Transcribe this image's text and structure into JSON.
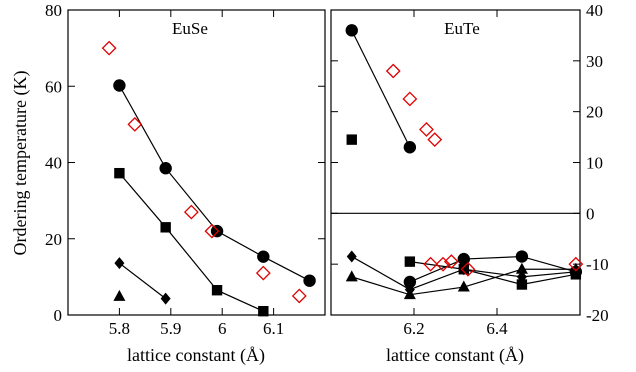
{
  "chart_data": [
    {
      "type": "scatter",
      "title": "EuSe",
      "xlabel": "lattice constant (Å)",
      "ylabel": "Ordering temperature (K)",
      "xlim": [
        5.7,
        6.2
      ],
      "ylim": [
        0,
        80
      ],
      "xticks": [
        5.8,
        5.9,
        6,
        6.1
      ],
      "xtick_labels": [
        "5.8",
        "5.9",
        "6",
        "6.1"
      ],
      "yticks": [
        0,
        20,
        40,
        60,
        80
      ],
      "ytick_labels": [
        "0",
        "20",
        "40",
        "60",
        "80"
      ],
      "grid": false,
      "series": [
        {
          "marker": "circle",
          "connected": true,
          "color": "#000000",
          "x": [
            5.8,
            5.89,
            5.99,
            6.08,
            6.17
          ],
          "y": [
            60.2,
            38.5,
            22,
            15.3,
            9
          ]
        },
        {
          "marker": "square",
          "connected": true,
          "color": "#000000",
          "x": [
            5.8,
            5.89,
            5.99,
            6.08
          ],
          "y": [
            37.2,
            23,
            6.5,
            1
          ]
        },
        {
          "marker": "diamond",
          "connected": true,
          "color": "#000000",
          "x": [
            5.8,
            5.89
          ],
          "y": [
            13.6,
            4.3
          ]
        },
        {
          "marker": "triangle",
          "connected": false,
          "color": "#000000",
          "x": [
            5.8
          ],
          "y": [
            4.9
          ]
        },
        {
          "marker": "open-diamond",
          "connected": false,
          "color": "#e00000",
          "x": [
            5.78,
            5.83,
            5.94,
            5.98,
            6.08,
            6.15
          ],
          "y": [
            70,
            50,
            27,
            22,
            11,
            5
          ]
        }
      ]
    },
    {
      "type": "scatter",
      "title": "EuTe",
      "xlabel": "lattice constant (Å)",
      "ylabel": "",
      "xlim": [
        6.0,
        6.6
      ],
      "ylim": [
        -20,
        40
      ],
      "xticks": [
        6.2,
        6.4
      ],
      "xtick_labels": [
        "6.2",
        "6.4"
      ],
      "yticks": [
        -20,
        -10,
        0,
        10,
        20,
        30,
        40
      ],
      "ytick_labels": [
        "-20",
        "-10",
        "0",
        "10",
        "20",
        "30",
        "40"
      ],
      "zero_line": true,
      "grid": false,
      "series": [
        {
          "marker": "circle",
          "connected": true,
          "color": "#000000",
          "x": [
            6.05,
            6.19
          ],
          "y": [
            36,
            13
          ]
        },
        {
          "marker": "square",
          "connected": false,
          "color": "#000000",
          "x": [
            6.05
          ],
          "y": [
            14.5
          ]
        },
        {
          "marker": "circle",
          "connected": true,
          "color": "#000000",
          "x": [
            6.19,
            6.32,
            6.46,
            6.59
          ],
          "y": [
            -13.5,
            -9,
            -8.5,
            -11.5
          ]
        },
        {
          "marker": "square",
          "connected": true,
          "color": "#000000",
          "x": [
            6.19,
            6.32,
            6.46,
            6.59
          ],
          "y": [
            -9.5,
            -11,
            -14,
            -12
          ]
        },
        {
          "marker": "diamond",
          "connected": true,
          "color": "#000000",
          "x": [
            6.05,
            6.19,
            6.32,
            6.46,
            6.59
          ],
          "y": [
            -8.5,
            -15,
            -11,
            -12.5,
            -11.5
          ]
        },
        {
          "marker": "triangle",
          "connected": true,
          "color": "#000000",
          "x": [
            6.05,
            6.19,
            6.32,
            6.46,
            6.59
          ],
          "y": [
            -12.5,
            -16,
            -14.5,
            -11,
            -11
          ]
        },
        {
          "marker": "open-diamond",
          "connected": false,
          "color": "#e00000",
          "x": [
            6.15,
            6.19,
            6.23,
            6.25,
            6.24,
            6.27,
            6.29,
            6.33,
            6.59
          ],
          "y": [
            28,
            22.5,
            16.5,
            14.5,
            -10,
            -10,
            -9.5,
            -11,
            -10
          ]
        }
      ]
    }
  ]
}
